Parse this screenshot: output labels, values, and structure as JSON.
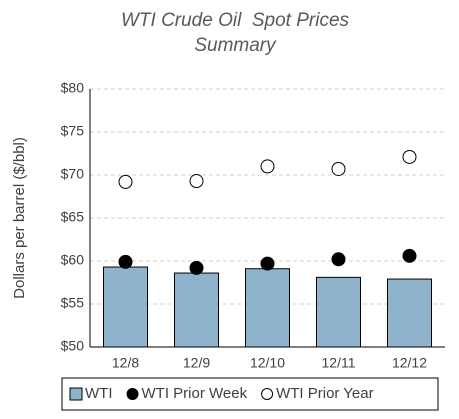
{
  "chart_data": {
    "type": "bar",
    "title": "WTI Crude Oil  Spot Prices Summary",
    "y_label": "Dollars per barrel ($/bbl)",
    "categories": [
      "12/8",
      "12/9",
      "12/10",
      "12/11",
      "12/12"
    ],
    "series": [
      {
        "name": "WTI",
        "type": "bar",
        "color": "#8fb3cc",
        "values": [
          59.3,
          58.6,
          59.1,
          58.1,
          57.9
        ]
      },
      {
        "name": "WTI Prior Week",
        "type": "scatter",
        "color": "#000000",
        "values": [
          59.9,
          59.2,
          59.7,
          60.2,
          60.6
        ]
      },
      {
        "name": "WTI Prior Year",
        "type": "scatter",
        "color": "#ffffff",
        "values": [
          69.2,
          69.3,
          71.0,
          70.7,
          72.1
        ]
      }
    ],
    "ylim": [
      50,
      80
    ],
    "yticks": [
      {
        "value": 50,
        "label": "$50"
      },
      {
        "value": 55,
        "label": "$55"
      },
      {
        "value": 60,
        "label": "$60"
      },
      {
        "value": 65,
        "label": "$65"
      },
      {
        "value": 70,
        "label": "$70"
      },
      {
        "value": 75,
        "label": "$75"
      },
      {
        "value": 80,
        "label": "$80"
      }
    ],
    "grid": true,
    "legend": "bottom"
  }
}
